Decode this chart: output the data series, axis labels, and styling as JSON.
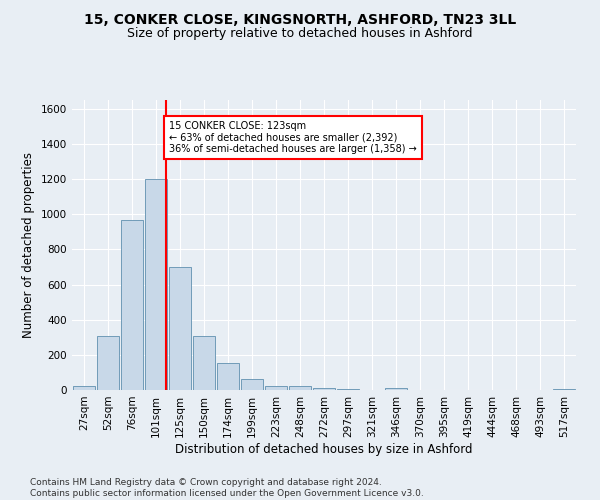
{
  "title_line1": "15, CONKER CLOSE, KINGSNORTH, ASHFORD, TN23 3LL",
  "title_line2": "Size of property relative to detached houses in Ashford",
  "xlabel": "Distribution of detached houses by size in Ashford",
  "ylabel": "Number of detached properties",
  "footnote": "Contains HM Land Registry data © Crown copyright and database right 2024.\nContains public sector information licensed under the Open Government Licence v3.0.",
  "bar_labels": [
    "27sqm",
    "52sqm",
    "76sqm",
    "101sqm",
    "125sqm",
    "150sqm",
    "174sqm",
    "199sqm",
    "223sqm",
    "248sqm",
    "272sqm",
    "297sqm",
    "321sqm",
    "346sqm",
    "370sqm",
    "395sqm",
    "419sqm",
    "444sqm",
    "468sqm",
    "493sqm",
    "517sqm"
  ],
  "bar_values": [
    25,
    310,
    970,
    1200,
    700,
    310,
    155,
    65,
    25,
    20,
    10,
    5,
    2,
    10,
    2,
    2,
    0,
    2,
    0,
    0,
    5
  ],
  "bar_color": "#c8d8e8",
  "bar_edge_color": "#6090b0",
  "vline_color": "red",
  "vline_x": 3.425,
  "annotation_text": "15 CONKER CLOSE: 123sqm\n← 63% of detached houses are smaller (2,392)\n36% of semi-detached houses are larger (1,358) →",
  "annotation_box_color": "white",
  "annotation_box_edge": "red",
  "ylim": [
    0,
    1650
  ],
  "yticks": [
    0,
    200,
    400,
    600,
    800,
    1000,
    1200,
    1400,
    1600
  ],
  "background_color": "#e8eef4",
  "plot_background_color": "#e8eef4",
  "grid_color": "white",
  "title_fontsize": 10,
  "subtitle_fontsize": 9,
  "axis_label_fontsize": 8.5,
  "tick_fontsize": 7.5,
  "footnote_fontsize": 6.5
}
